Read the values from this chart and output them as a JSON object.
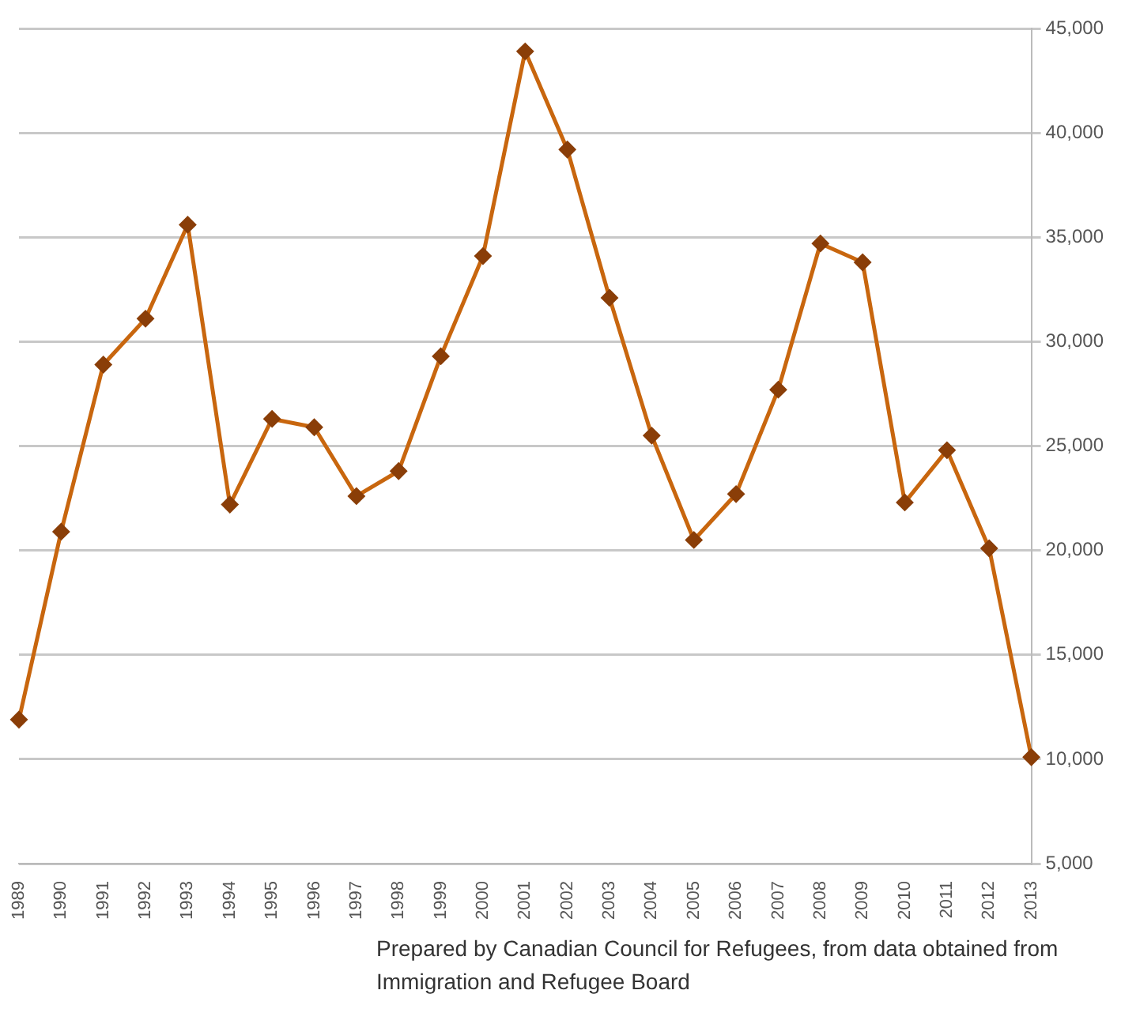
{
  "chart_data": {
    "type": "line",
    "categories": [
      "1989",
      "1990",
      "1991",
      "1992",
      "1993",
      "1994",
      "1995",
      "1996",
      "1997",
      "1998",
      "1999",
      "2000",
      "2001",
      "2002",
      "2003",
      "2004",
      "2005",
      "2006",
      "2007",
      "2008",
      "2009",
      "2010",
      "2011",
      "2012",
      "2013"
    ],
    "series": [
      {
        "color": "#c8660e",
        "values": [
          11900,
          20900,
          28900,
          31100,
          35600,
          22200,
          26300,
          25900,
          22600,
          23800,
          29300,
          34100,
          43900,
          39200,
          32100,
          25500,
          20500,
          22700,
          27700,
          34700,
          33800,
          22300,
          24800,
          20100,
          10100
        ]
      }
    ],
    "ylim": [
      5000,
      45000
    ],
    "yticks": [
      {
        "value": 5000,
        "label": "5,000"
      },
      {
        "value": 10000,
        "label": "10,000"
      },
      {
        "value": 15000,
        "label": "15,000"
      },
      {
        "value": 20000,
        "label": "20,000"
      },
      {
        "value": 25000,
        "label": "25,000"
      },
      {
        "value": 30000,
        "label": "30,000"
      },
      {
        "value": 35000,
        "label": "35,000"
      },
      {
        "value": 40000,
        "label": "40,000"
      },
      {
        "value": 45000,
        "label": "45,000"
      }
    ],
    "grid": "y",
    "legend": false,
    "marker": "diamond",
    "line_style": "solid",
    "annotations": [
      "Prepared by Canadian Council for Refugees, from data obtained from Immigration and Refugee Board"
    ]
  }
}
